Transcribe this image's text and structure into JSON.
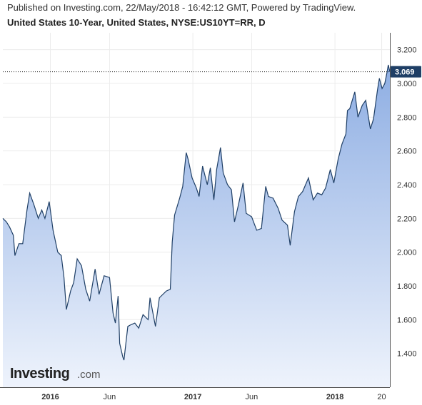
{
  "header": {
    "published": "Published on Investing.com, 22/May/2018 - 16:42:12 GMT, Powered by TradingView.",
    "symbol": "United States 10-Year, United States, NYSE:US10YT=RR, D"
  },
  "logo": {
    "main": "Investing",
    "suffix": ".com"
  },
  "colors": {
    "line": "#1f3f66",
    "fill_top": "#8eaee3",
    "fill_bottom": "#eef3fc",
    "grid": "#ececec",
    "last_badge": "#1f3f66"
  },
  "chart_data": {
    "type": "area",
    "title": "",
    "xlabel": "",
    "ylabel": "",
    "x_range": [
      "2015-09-01",
      "2018-05-22"
    ],
    "ylim": [
      1.2,
      3.3
    ],
    "y_ticks": [
      {
        "value": 1.4,
        "label": "1.400"
      },
      {
        "value": 1.6,
        "label": "1.600"
      },
      {
        "value": 1.8,
        "label": "1.800"
      },
      {
        "value": 2.0,
        "label": "2.000"
      },
      {
        "value": 2.2,
        "label": "2.200"
      },
      {
        "value": 2.4,
        "label": "2.400"
      },
      {
        "value": 2.6,
        "label": "2.600"
      },
      {
        "value": 2.8,
        "label": "2.800"
      },
      {
        "value": 3.0,
        "label": "3.000"
      },
      {
        "value": 3.2,
        "label": "3.200"
      }
    ],
    "x_ticks": [
      {
        "date": "2016-01-01",
        "label": "2016",
        "bold": true
      },
      {
        "date": "2016-06-01",
        "label": "Jun",
        "bold": false
      },
      {
        "date": "2017-01-01",
        "label": "2017",
        "bold": true
      },
      {
        "date": "2017-06-01",
        "label": "Jun",
        "bold": false
      },
      {
        "date": "2018-01-01",
        "label": "2018",
        "bold": true
      },
      {
        "date": "2018-05-01",
        "label": "20",
        "bold": false
      }
    ],
    "last_value": {
      "value": 3.069,
      "label": "3.069"
    },
    "grid": true,
    "series": [
      {
        "points": [
          [
            "2015-09-01",
            2.2
          ],
          [
            "2015-09-10",
            2.18
          ],
          [
            "2015-09-18",
            2.15
          ],
          [
            "2015-09-28",
            2.1
          ],
          [
            "2015-10-02",
            1.98
          ],
          [
            "2015-10-12",
            2.05
          ],
          [
            "2015-10-22",
            2.05
          ],
          [
            "2015-11-02",
            2.25
          ],
          [
            "2015-11-09",
            2.35
          ],
          [
            "2015-11-20",
            2.28
          ],
          [
            "2015-12-01",
            2.2
          ],
          [
            "2015-12-10",
            2.25
          ],
          [
            "2015-12-18",
            2.2
          ],
          [
            "2015-12-29",
            2.3
          ],
          [
            "2016-01-08",
            2.13
          ],
          [
            "2016-01-20",
            2.0
          ],
          [
            "2016-01-29",
            1.98
          ],
          [
            "2016-02-05",
            1.85
          ],
          [
            "2016-02-11",
            1.66
          ],
          [
            "2016-02-22",
            1.77
          ],
          [
            "2016-03-01",
            1.82
          ],
          [
            "2016-03-10",
            1.96
          ],
          [
            "2016-03-21",
            1.92
          ],
          [
            "2016-04-01",
            1.78
          ],
          [
            "2016-04-11",
            1.71
          ],
          [
            "2016-04-25",
            1.9
          ],
          [
            "2016-05-05",
            1.75
          ],
          [
            "2016-05-18",
            1.86
          ],
          [
            "2016-06-01",
            1.85
          ],
          [
            "2016-06-10",
            1.64
          ],
          [
            "2016-06-16",
            1.58
          ],
          [
            "2016-06-23",
            1.74
          ],
          [
            "2016-06-27",
            1.46
          ],
          [
            "2016-07-05",
            1.38
          ],
          [
            "2016-07-08",
            1.36
          ],
          [
            "2016-07-18",
            1.56
          ],
          [
            "2016-07-26",
            1.57
          ],
          [
            "2016-08-05",
            1.58
          ],
          [
            "2016-08-15",
            1.55
          ],
          [
            "2016-08-26",
            1.63
          ],
          [
            "2016-09-08",
            1.6
          ],
          [
            "2016-09-13",
            1.73
          ],
          [
            "2016-09-27",
            1.56
          ],
          [
            "2016-10-07",
            1.73
          ],
          [
            "2016-10-25",
            1.77
          ],
          [
            "2016-11-04",
            1.78
          ],
          [
            "2016-11-09",
            2.06
          ],
          [
            "2016-11-15",
            2.22
          ],
          [
            "2016-11-28",
            2.32
          ],
          [
            "2016-12-06",
            2.39
          ],
          [
            "2016-12-15",
            2.59
          ],
          [
            "2016-12-20",
            2.55
          ],
          [
            "2016-12-30",
            2.44
          ],
          [
            "2017-01-10",
            2.38
          ],
          [
            "2017-01-17",
            2.33
          ],
          [
            "2017-01-26",
            2.51
          ],
          [
            "2017-02-07",
            2.4
          ],
          [
            "2017-02-15",
            2.5
          ],
          [
            "2017-02-24",
            2.31
          ],
          [
            "2017-03-03",
            2.49
          ],
          [
            "2017-03-13",
            2.62
          ],
          [
            "2017-03-20",
            2.47
          ],
          [
            "2017-03-31",
            2.4
          ],
          [
            "2017-04-10",
            2.37
          ],
          [
            "2017-04-18",
            2.18
          ],
          [
            "2017-04-28",
            2.28
          ],
          [
            "2017-05-10",
            2.41
          ],
          [
            "2017-05-18",
            2.23
          ],
          [
            "2017-06-01",
            2.21
          ],
          [
            "2017-06-14",
            2.13
          ],
          [
            "2017-06-26",
            2.14
          ],
          [
            "2017-07-07",
            2.39
          ],
          [
            "2017-07-14",
            2.33
          ],
          [
            "2017-07-26",
            2.32
          ],
          [
            "2017-08-08",
            2.26
          ],
          [
            "2017-08-18",
            2.19
          ],
          [
            "2017-09-01",
            2.16
          ],
          [
            "2017-09-08",
            2.04
          ],
          [
            "2017-09-19",
            2.24
          ],
          [
            "2017-09-29",
            2.33
          ],
          [
            "2017-10-10",
            2.36
          ],
          [
            "2017-10-25",
            2.44
          ],
          [
            "2017-11-06",
            2.31
          ],
          [
            "2017-11-17",
            2.35
          ],
          [
            "2017-11-28",
            2.34
          ],
          [
            "2017-12-08",
            2.38
          ],
          [
            "2017-12-20",
            2.49
          ],
          [
            "2017-12-29",
            2.41
          ],
          [
            "2018-01-09",
            2.55
          ],
          [
            "2018-01-19",
            2.64
          ],
          [
            "2018-01-29",
            2.7
          ],
          [
            "2018-02-02",
            2.84
          ],
          [
            "2018-02-08",
            2.85
          ],
          [
            "2018-02-21",
            2.95
          ],
          [
            "2018-03-01",
            2.8
          ],
          [
            "2018-03-12",
            2.87
          ],
          [
            "2018-03-21",
            2.9
          ],
          [
            "2018-04-02",
            2.73
          ],
          [
            "2018-04-10",
            2.79
          ],
          [
            "2018-04-20",
            2.96
          ],
          [
            "2018-04-25",
            3.03
          ],
          [
            "2018-05-02",
            2.97
          ],
          [
            "2018-05-09",
            3.0
          ],
          [
            "2018-05-15",
            3.07
          ],
          [
            "2018-05-18",
            3.11
          ],
          [
            "2018-05-22",
            3.069
          ]
        ]
      }
    ]
  }
}
